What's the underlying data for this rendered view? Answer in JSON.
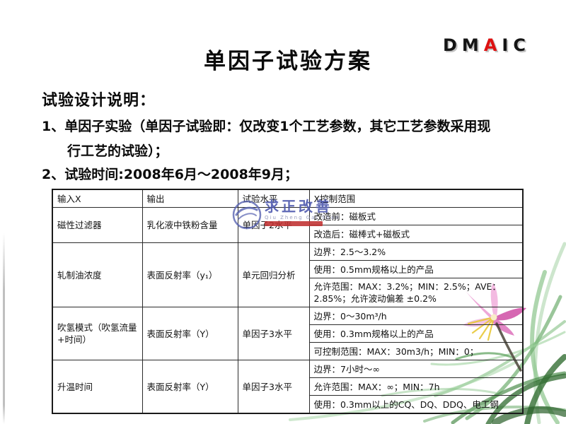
{
  "slide": {
    "title": "单因子试验方案",
    "dmaic": {
      "letters": "DMAIC",
      "accent_index": 2
    },
    "section_heading": "试验设计说明：",
    "bullets": [
      {
        "line1": "1、单因子实验（单因子试验即：仅改变1个工艺参数，其它工艺参数采用现",
        "line2": "行工艺的试验）；"
      },
      {
        "line1": "2、试验时间:2008年6月～2008年9月；",
        "line2": ""
      }
    ]
  },
  "table": {
    "headers": [
      "输入X",
      "输出",
      "试验水平",
      "X控制范围"
    ],
    "rows": [
      {
        "input": "磁性过滤器",
        "output": "乳化液中铁粉含量",
        "level": "单因子2水平",
        "ranges": [
          "改造前：磁板式",
          "改造后：磁棒式+磁板式"
        ]
      },
      {
        "input": "轧制油浓度",
        "output": "表面反射率（y₁）",
        "level": "单元回归分析",
        "ranges": [
          "边界：2.5～3.2%",
          "使用：0.5mm规格以上的产品",
          "允许范围：MAX：3.2%；MIN：2.5%；AVE：2.85%；允许波动偏差 ±0.2%"
        ]
      },
      {
        "input": "吹氢模式（吹氢流量+时间）",
        "output": "表面反射率（Y）",
        "level": "单因子3水平",
        "ranges": [
          "边界：0～30m³/h",
          "使用：0.3mm规格以上的产品",
          "可控制范围：MAX：30m3/h；MIN：0；"
        ]
      },
      {
        "input": "升温时间",
        "output": "表面反射率（Y）",
        "level": "单因子3水平",
        "ranges": [
          "边界：7小时～∞",
          "允许范围：MAX：∞；MIN：7h",
          "使用：0.3mm以上的CQ、DQ、DDQ、电工钢"
        ]
      }
    ]
  },
  "watermark": {
    "text": "求正改善",
    "subtext": "Qiu Zheng Gai Shan"
  },
  "colors": {
    "dmaic_accent": "#dd1111",
    "text": "#111111",
    "watermark_blue": "#4a55ad",
    "watermark_red": "#c03030",
    "flower_pink": "#e89ad2",
    "grass_green": "#6fae6f"
  }
}
